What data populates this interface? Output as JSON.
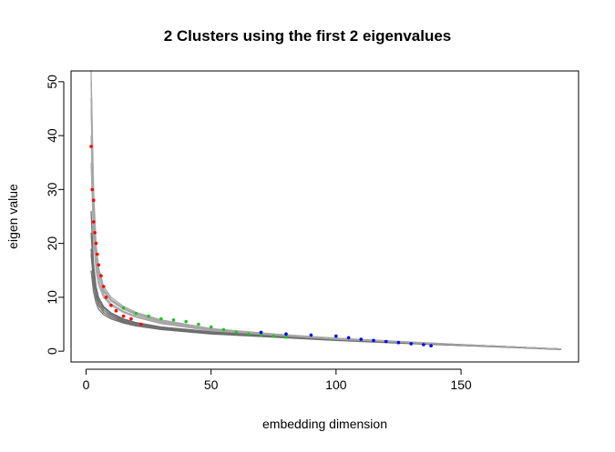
{
  "chart_data": {
    "type": "line",
    "title": "2 Clusters using the first 2 eigenvalues",
    "xlabel": "embedding dimension",
    "ylabel": "eigen value",
    "xlim": [
      -6,
      197
    ],
    "ylim": [
      -2,
      52
    ],
    "xticks": [
      0,
      50,
      100,
      150
    ],
    "yticks": [
      0,
      10,
      20,
      30,
      40,
      50
    ],
    "grid": false,
    "legend": "none",
    "colors": {
      "curve_light": "#a6a6a6",
      "curve_dark": "#6e6e6e",
      "cluster_red": "#ff0000",
      "cluster_green": "#22c322",
      "cluster_blue": "#0000ff"
    },
    "series": [
      {
        "group": "dark",
        "x": [
          2,
          3,
          4,
          5,
          7,
          10,
          15,
          20,
          30,
          50,
          75,
          100,
          130,
          160,
          190
        ],
        "y": [
          18.0,
          13.0,
          10.5,
          9.0,
          7.6,
          6.6,
          5.6,
          5.0,
          4.3,
          3.4,
          2.7,
          2.1,
          1.5,
          1.0,
          0.4
        ]
      },
      {
        "group": "dark",
        "x": [
          2,
          3,
          4,
          5,
          7,
          10,
          15,
          20,
          30,
          50,
          75,
          100,
          130,
          160,
          190
        ],
        "y": [
          22.0,
          14.5,
          11.5,
          9.5,
          8.0,
          6.9,
          5.8,
          5.2,
          4.4,
          3.5,
          2.8,
          2.2,
          1.6,
          1.0,
          0.4
        ]
      },
      {
        "group": "dark",
        "x": [
          2,
          3,
          4,
          5,
          7,
          10,
          15,
          20,
          30,
          50,
          75,
          100,
          130,
          160,
          190
        ],
        "y": [
          15.0,
          11.0,
          9.0,
          7.8,
          6.8,
          6.0,
          5.2,
          4.7,
          4.0,
          3.2,
          2.6,
          2.0,
          1.4,
          0.9,
          0.3
        ]
      },
      {
        "group": "dark",
        "x": [
          2,
          3,
          4,
          5,
          7,
          10,
          15,
          20,
          30,
          50,
          75,
          100,
          130,
          160,
          190
        ],
        "y": [
          26.0,
          16.0,
          12.0,
          10.0,
          8.3,
          7.1,
          6.0,
          5.3,
          4.5,
          3.6,
          2.9,
          2.3,
          1.6,
          1.0,
          0.4
        ]
      },
      {
        "group": "dark",
        "x": [
          2,
          3,
          4,
          5,
          7,
          10,
          15,
          20,
          30,
          50,
          75,
          100,
          130,
          160,
          190
        ],
        "y": [
          19.0,
          12.5,
          10.0,
          8.5,
          7.2,
          6.3,
          5.4,
          4.8,
          4.1,
          3.3,
          2.7,
          2.1,
          1.5,
          0.9,
          0.4
        ]
      },
      {
        "group": "light",
        "x": [
          2,
          3,
          4,
          5,
          7,
          10,
          15,
          20,
          30,
          50,
          75,
          100,
          130,
          160,
          190
        ],
        "y": [
          52.0,
          30.0,
          20.0,
          15.5,
          12.0,
          10.0,
          8.3,
          7.2,
          5.8,
          4.2,
          3.2,
          2.4,
          1.7,
          1.0,
          0.4
        ]
      },
      {
        "group": "light",
        "x": [
          2,
          3,
          4,
          5,
          7,
          10,
          15,
          20,
          30,
          50,
          75,
          100,
          130,
          160,
          190
        ],
        "y": [
          45.0,
          26.0,
          18.0,
          14.0,
          11.0,
          9.3,
          7.8,
          6.8,
          5.5,
          4.0,
          3.1,
          2.3,
          1.6,
          1.0,
          0.4
        ]
      },
      {
        "group": "light",
        "x": [
          2,
          3,
          4,
          5,
          7,
          10,
          15,
          20,
          30,
          50,
          75,
          100,
          130,
          160,
          190
        ],
        "y": [
          40.0,
          23.0,
          16.5,
          13.0,
          10.5,
          8.8,
          7.4,
          6.5,
          5.3,
          3.9,
          3.0,
          2.3,
          1.6,
          1.0,
          0.4
        ]
      },
      {
        "group": "light",
        "x": [
          2,
          3,
          4,
          5,
          7,
          10,
          15,
          20,
          30,
          50,
          75,
          100,
          130,
          160,
          190
        ],
        "y": [
          50.0,
          28.0,
          19.0,
          15.0,
          11.5,
          9.6,
          8.0,
          7.0,
          5.6,
          4.1,
          3.1,
          2.4,
          1.7,
          1.0,
          0.4
        ]
      },
      {
        "group": "light",
        "x": [
          2,
          3,
          4,
          5,
          7,
          10,
          15,
          20,
          30,
          50,
          75,
          100,
          130,
          160,
          190
        ],
        "y": [
          35.0,
          21.0,
          15.0,
          12.3,
          10.0,
          8.5,
          7.2,
          6.3,
          5.1,
          3.8,
          3.0,
          2.2,
          1.6,
          1.0,
          0.4
        ]
      },
      {
        "group": "light",
        "x": [
          2,
          3,
          4,
          5,
          7,
          10,
          15,
          20,
          30,
          50,
          75,
          100,
          130,
          160,
          190
        ],
        "y": [
          47.0,
          27.0,
          18.5,
          14.5,
          11.3,
          9.4,
          7.9,
          6.9,
          5.5,
          4.0,
          3.1,
          2.3,
          1.6,
          1.0,
          0.4
        ]
      }
    ],
    "clusters": [
      {
        "color": "red",
        "x": [
          2,
          2.5,
          3,
          3,
          3.5,
          4,
          4.5,
          5,
          6,
          7,
          8,
          10,
          12,
          15,
          18,
          22
        ],
        "y": [
          38.0,
          30.0,
          28.0,
          24.0,
          22.0,
          20.0,
          18.0,
          16.0,
          14.0,
          12.0,
          10.0,
          8.5,
          7.5,
          6.5,
          6.0,
          5.0
        ]
      },
      {
        "color": "green",
        "x": [
          15,
          20,
          25,
          30,
          35,
          40,
          45,
          50,
          55,
          60,
          65,
          70,
          75,
          80
        ],
        "y": [
          8.0,
          7.0,
          6.5,
          6.0,
          5.8,
          5.5,
          5.0,
          4.5,
          4.0,
          3.5,
          3.2,
          3.0,
          2.8,
          2.6
        ]
      },
      {
        "color": "blue",
        "x": [
          70,
          80,
          90,
          100,
          105,
          110,
          115,
          120,
          125,
          130,
          135,
          138
        ],
        "y": [
          3.5,
          3.2,
          3.0,
          2.8,
          2.5,
          2.2,
          2.0,
          1.8,
          1.6,
          1.4,
          1.2,
          1.0
        ]
      }
    ]
  }
}
